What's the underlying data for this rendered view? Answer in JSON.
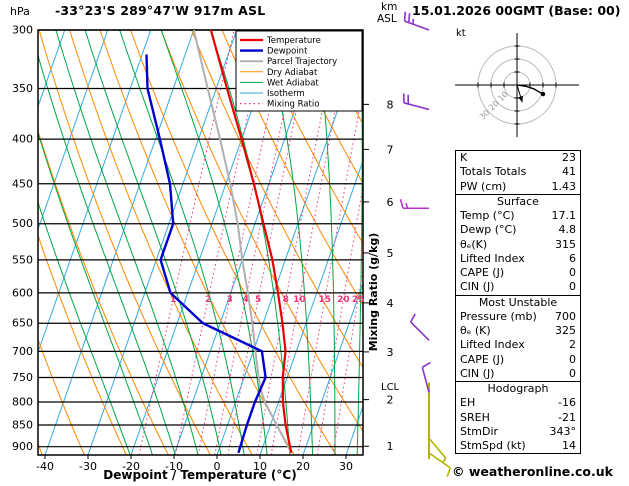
{
  "header": {
    "pressure_unit": "hPa",
    "title": "-33°23'S 289°47'W 917m ASL",
    "datetime": "15.01.2026 00GMT (Base: 00)",
    "altitude_unit_top": "km",
    "altitude_unit_bottom": "ASL"
  },
  "footer": {
    "copyright": "© weatheronline.co.uk"
  },
  "chart_data": {
    "type": "skewt_logp",
    "skewt": {
      "xlabel": "Dewpoint / Temperature (°C)",
      "right_axis_label": "Mixing Ratio (g/kg)",
      "pressure_ticks": [
        300,
        350,
        400,
        450,
        500,
        550,
        600,
        650,
        700,
        750,
        800,
        850,
        900
      ],
      "temp_ticks": [
        -40,
        -30,
        -20,
        -10,
        0,
        10,
        20,
        30
      ],
      "km_ticks": [
        {
          "km": 8,
          "p": 365
        },
        {
          "km": 7,
          "p": 411
        },
        {
          "km": 6,
          "p": 472
        },
        {
          "km": 5,
          "p": 540
        },
        {
          "km": 4,
          "p": 616
        },
        {
          "km": 3,
          "p": 701
        },
        {
          "km": 2,
          "p": 795
        },
        {
          "km": 1,
          "p": 899
        }
      ],
      "lcl": {
        "label": "LCL",
        "pressure": 770
      },
      "mixing_ratio_values": [
        1,
        2,
        3,
        4,
        5,
        8,
        10,
        15,
        20,
        25
      ],
      "mixing_ratio_label_pressure": 610,
      "legend": [
        {
          "label": "Temperature",
          "color": "#e60000",
          "width": 2.2,
          "dash": ""
        },
        {
          "label": "Dewpoint",
          "color": "#0000cc",
          "width": 2.4,
          "dash": ""
        },
        {
          "label": "Parcel Trajectory",
          "color": "#b0b0b0",
          "width": 2,
          "dash": ""
        },
        {
          "label": "Dry Adiabat",
          "color": "#ff8800",
          "width": 1,
          "dash": ""
        },
        {
          "label": "Wet Adiabat",
          "color": "#00a640",
          "width": 1,
          "dash": ""
        },
        {
          "label": "Isotherm",
          "color": "#33aadd",
          "width": 1,
          "dash": ""
        },
        {
          "label": "Mixing Ratio",
          "color": "#ee3377",
          "width": 1.2,
          "dash": "1.5 3"
        }
      ],
      "series": {
        "temperature_p_c": [
          [
            915,
            17.1
          ],
          [
            850,
            13.5
          ],
          [
            800,
            11
          ],
          [
            750,
            9
          ],
          [
            700,
            7.5
          ],
          [
            650,
            4.5
          ],
          [
            600,
            1
          ],
          [
            550,
            -3
          ],
          [
            500,
            -8
          ],
          [
            450,
            -13.5
          ],
          [
            400,
            -20
          ],
          [
            350,
            -27.5
          ],
          [
            300,
            -36
          ]
        ],
        "dewpoint_p_c": [
          [
            915,
            4.8
          ],
          [
            850,
            4.5
          ],
          [
            800,
            4.5
          ],
          [
            750,
            5
          ],
          [
            700,
            2
          ],
          [
            650,
            -14
          ],
          [
            600,
            -24
          ],
          [
            550,
            -29
          ],
          [
            500,
            -29
          ],
          [
            450,
            -33
          ],
          [
            400,
            -39
          ],
          [
            350,
            -46
          ],
          [
            320,
            -49
          ]
        ],
        "parcel_p_c": [
          [
            915,
            17.1
          ],
          [
            800,
            6.8
          ],
          [
            770,
            4.5
          ],
          [
            700,
            0.5
          ],
          [
            650,
            -2.5
          ],
          [
            600,
            -6
          ],
          [
            550,
            -10
          ],
          [
            500,
            -14
          ],
          [
            450,
            -19
          ],
          [
            400,
            -25
          ],
          [
            350,
            -32
          ],
          [
            300,
            -40
          ]
        ]
      },
      "winds": [
        {
          "pressure": 300,
          "speed_kt": 25,
          "dir_deg": 290,
          "color": "#8833cc"
        },
        {
          "pressure": 370,
          "speed_kt": 20,
          "dir_deg": 285,
          "color": "#8833cc"
        },
        {
          "pressure": 480,
          "speed_kt": 15,
          "dir_deg": 270,
          "color": "#bb33cc"
        },
        {
          "pressure": 680,
          "speed_kt": 10,
          "dir_deg": 315,
          "color": "#8833cc"
        },
        {
          "pressure": 780,
          "speed_kt": 10,
          "dir_deg": 345,
          "color": "#8833cc"
        },
        {
          "pressure": 880,
          "speed_kt": 5,
          "dir_deg": 140,
          "color": "#b5b500"
        },
        {
          "pressure": 915,
          "speed_kt": 10,
          "dir_deg": 125,
          "color": "#b5b500"
        }
      ]
    },
    "hodograph": {
      "unit": "kt",
      "rings_kt": [
        10,
        20,
        30
      ],
      "ring_labels": [
        "10",
        "20",
        "30"
      ],
      "trace_uv_kt": [
        [
          0,
          0
        ],
        [
          7,
          -1
        ],
        [
          13,
          -3
        ],
        [
          20,
          -7
        ]
      ],
      "storm_motion": {
        "dir_deg": 343,
        "speed_kt": 14
      }
    }
  },
  "indices_table": {
    "top_rows": [
      {
        "label": "K",
        "value": "23"
      },
      {
        "label": "Totals Totals",
        "value": "41"
      },
      {
        "label": "PW (cm)",
        "value": "1.43"
      }
    ],
    "sections": [
      {
        "header": "Surface",
        "rows": [
          {
            "label": "Temp (°C)",
            "value": "17.1"
          },
          {
            "label": "Dewp (°C)",
            "value": "4.8"
          },
          {
            "label": "θₑ(K)",
            "value": "315"
          },
          {
            "label": "Lifted Index",
            "value": "6"
          },
          {
            "label": "CAPE (J)",
            "value": "0"
          },
          {
            "label": "CIN (J)",
            "value": "0"
          }
        ]
      },
      {
        "header": "Most Unstable",
        "rows": [
          {
            "label": "Pressure (mb)",
            "value": "700"
          },
          {
            "label": "θₑ (K)",
            "value": "325"
          },
          {
            "label": "Lifted Index",
            "value": "2"
          },
          {
            "label": "CAPE (J)",
            "value": "0"
          },
          {
            "label": "CIN (J)",
            "value": "0"
          }
        ]
      },
      {
        "header": "Hodograph",
        "rows": [
          {
            "label": "EH",
            "value": "-16"
          },
          {
            "label": "SREH",
            "value": "-21"
          },
          {
            "label": "StmDir",
            "value": "343°"
          },
          {
            "label": "StmSpd (kt)",
            "value": "14"
          }
        ]
      }
    ]
  }
}
